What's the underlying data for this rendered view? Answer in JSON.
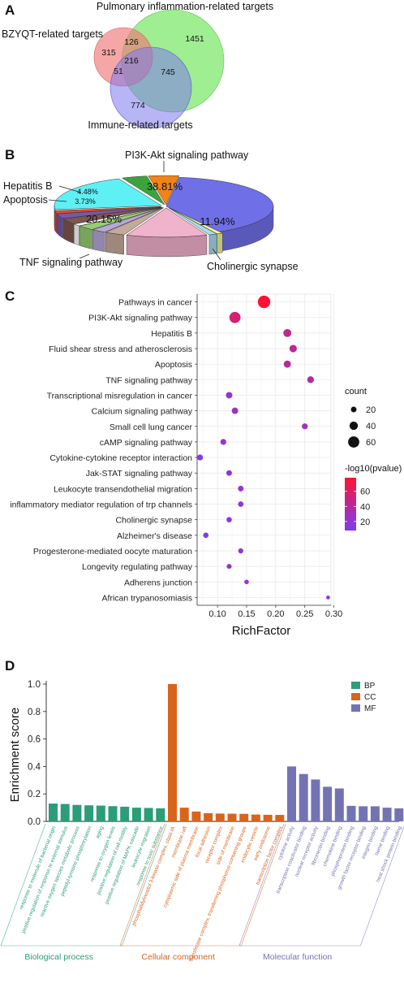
{
  "panel_labels": [
    "A",
    "B",
    "C",
    "D"
  ],
  "chart_data": [
    {
      "type": "venn",
      "sets": [
        {
          "name": "Pulmonary inflammation-related targets",
          "color": "#7fe86c"
        },
        {
          "name": "BZYQT-related targets",
          "color": "#f07878"
        },
        {
          "name": "Immune-related targets",
          "color": "#7b78ec"
        }
      ],
      "regions": [
        {
          "label": "BZYQT only",
          "value": 315
        },
        {
          "label": "BZYQT ∩ Pulmonary",
          "value": 126
        },
        {
          "label": "Pulmonary only",
          "value": 1451
        },
        {
          "label": "All three",
          "value": 216
        },
        {
          "label": "BZYQT ∩ Immune",
          "value": 51
        },
        {
          "label": "Pulmonary ∩ Immune",
          "value": 745
        },
        {
          "label": "Immune only",
          "value": 774
        }
      ]
    },
    {
      "type": "pie",
      "style": "3d-exploded",
      "slices": [
        {
          "name": "PI3K-Akt signaling pathway",
          "value": 38.81,
          "label": "38.81%",
          "color": "#6f6fe8"
        },
        {
          "name": "",
          "value": 0.9,
          "label": "",
          "color": "#f3f39a"
        },
        {
          "name": "",
          "value": 1.2,
          "label": "",
          "color": "#a8dcec"
        },
        {
          "name": "Cholinergic synapse",
          "value": 11.94,
          "label": "11.94%",
          "color": "#f1b2cc"
        },
        {
          "name": "",
          "value": 3.0,
          "label": "",
          "color": "#c5a99a"
        },
        {
          "name": "",
          "value": 2.2,
          "label": "",
          "color": "#b5a8d6"
        },
        {
          "name": "",
          "value": 2.6,
          "label": "",
          "color": "#96cd72"
        },
        {
          "name": "",
          "value": 1.2,
          "label": "",
          "color": "#ffffff"
        },
        {
          "name": "",
          "value": 3.1,
          "label": "",
          "color": "#805650"
        },
        {
          "name": "",
          "value": 2.6,
          "label": "",
          "color": "#7658ab"
        },
        {
          "name": "",
          "value": 1.7,
          "label": "",
          "color": "#e24a2e"
        },
        {
          "name": "TNF signaling pathway",
          "value": 20.15,
          "label": "20.15%",
          "color": "#5ef0f4"
        },
        {
          "name": "Apoptosis",
          "value": 3.73,
          "label": "3.73%",
          "color": "#3ca33c"
        },
        {
          "name": "Hepatitis B",
          "value": 4.48,
          "label": "4.48%",
          "color": "#f08419"
        }
      ]
    },
    {
      "type": "scatter",
      "style": "bubble",
      "xlabel": "RichFactor",
      "xticks": [
        "0.10",
        "0.15",
        "0.20",
        "0.25",
        "0.30"
      ],
      "xlim": [
        0.065,
        0.295
      ],
      "size_legend_title": "count",
      "size_legend": [
        20,
        40,
        60
      ],
      "color_legend_title": "-log10(pvalue)",
      "color_ticks": [
        "60",
        "40",
        "20"
      ],
      "color_range": [
        8,
        78
      ],
      "colors": [
        "#7b3df5",
        "#ff1133"
      ],
      "grid": true,
      "points": [
        {
          "term": "Pathways in cancer",
          "x": 0.18,
          "count": 69,
          "p": 78
        },
        {
          "term": "PI3K-Akt signaling pathway",
          "x": 0.13,
          "count": 60,
          "p": 55
        },
        {
          "term": "Hepatitis B",
          "x": 0.22,
          "count": 37,
          "p": 45
        },
        {
          "term": "Fluid shear stress and atherosclerosis",
          "x": 0.23,
          "count": 33,
          "p": 42
        },
        {
          "term": "Apoptosis",
          "x": 0.22,
          "count": 31,
          "p": 40
        },
        {
          "term": "TNF signaling pathway",
          "x": 0.26,
          "count": 28,
          "p": 36
        },
        {
          "term": "Transcriptional misregulation in cancer",
          "x": 0.12,
          "count": 26,
          "p": 24
        },
        {
          "term": "Calcium signaling pathway",
          "x": 0.13,
          "count": 26,
          "p": 25
        },
        {
          "term": "Small cell lung cancer",
          "x": 0.25,
          "count": 22,
          "p": 28
        },
        {
          "term": "cAMP signaling pathway",
          "x": 0.11,
          "count": 22,
          "p": 18
        },
        {
          "term": "Cytokine-cytokine receptor interaction",
          "x": 0.07,
          "count": 22,
          "p": 10
        },
        {
          "term": "Jak-STAT signaling pathway",
          "x": 0.12,
          "count": 20,
          "p": 17
        },
        {
          "term": "Leukocyte transendothelial migration",
          "x": 0.14,
          "count": 20,
          "p": 20
        },
        {
          "term": "inflammatory mediator regulation of trp channels",
          "x": 0.14,
          "count": 19,
          "p": 20
        },
        {
          "term": "Cholinergic synapse",
          "x": 0.12,
          "count": 18,
          "p": 17
        },
        {
          "term": "Alzheimer's disease",
          "x": 0.08,
          "count": 18,
          "p": 11
        },
        {
          "term": "Progesterone-mediated oocyte maturation",
          "x": 0.14,
          "count": 16,
          "p": 20
        },
        {
          "term": "Longevity regulating pathway",
          "x": 0.12,
          "count": 15,
          "p": 17
        },
        {
          "term": "Adherens junction",
          "x": 0.15,
          "count": 12,
          "p": 19
        },
        {
          "term": "African trypanosomiasis",
          "x": 0.29,
          "count": 7,
          "p": 15
        }
      ]
    },
    {
      "type": "bar",
      "ylabel": "Enrichment score",
      "ylim": [
        0,
        1.0
      ],
      "yticks": [
        "0.0",
        "0.2",
        "0.4",
        "0.6",
        "0.8",
        "1.0"
      ],
      "legend": [
        {
          "name": "BP",
          "color": "#2b9d78"
        },
        {
          "name": "CC",
          "color": "#d9641c"
        },
        {
          "name": "MF",
          "color": "#7373b4"
        }
      ],
      "groups": [
        {
          "name": "Biological process",
          "color": "#2b9d78",
          "items": [
            {
              "label": "response to molecule of bacterial origin",
              "value": 0.13
            },
            {
              "label": "positive regulation of response to external stimulus",
              "value": 0.127
            },
            {
              "label": "reactive oxygen species metabolic process",
              "value": 0.12
            },
            {
              "label": "peptidyl-tyrosine phosphorylation",
              "value": 0.117
            },
            {
              "label": "aging",
              "value": 0.115
            },
            {
              "label": "response to oxygen levels",
              "value": 0.111
            },
            {
              "label": "positive regulation of cell motility",
              "value": 0.107
            },
            {
              "label": "positive regulation of MAPK cascade",
              "value": 0.1
            },
            {
              "label": "leukocyte migration",
              "value": 0.098
            },
            {
              "label": "response to toxic substance",
              "value": 0.095
            }
          ]
        },
        {
          "name": "Cellular component",
          "color": "#d9641c",
          "items": [
            {
              "label": "phosphatidylinositol 3-kinase complex, class IA",
              "value": 1.0
            },
            {
              "label": "membrane raft",
              "value": 0.1
            },
            {
              "label": "cytoplasmic side of plasma membrane",
              "value": 0.072
            },
            {
              "label": "focal adhesion",
              "value": 0.06
            },
            {
              "label": "receptor complex",
              "value": 0.057
            },
            {
              "label": "side of membrane",
              "value": 0.056
            },
            {
              "label": "transferase complex, transferring phosphorus-containing groups",
              "value": 0.055
            },
            {
              "label": "endocytic vesicle",
              "value": 0.05
            },
            {
              "label": "early endosome",
              "value": 0.048
            },
            {
              "label": "transcription factor complex",
              "value": 0.047
            }
          ]
        },
        {
          "name": "Molecular function",
          "color": "#7373b4",
          "items": [
            {
              "label": "cytokine activity",
              "value": 0.4
            },
            {
              "label": "transcription coactivator binding",
              "value": 0.345
            },
            {
              "label": "nuclear receptor activity",
              "value": 0.305
            },
            {
              "label": "fibronectin binding",
              "value": 0.252
            },
            {
              "label": "chemokine binding",
              "value": 0.24
            },
            {
              "label": "phosphoprotein binding",
              "value": 0.113
            },
            {
              "label": "growth factor receptor binding",
              "value": 0.11
            },
            {
              "label": "integrin binding",
              "value": 0.11
            },
            {
              "label": "heme binding",
              "value": 0.1
            },
            {
              "label": "heat shock protein binding",
              "value": 0.095
            }
          ]
        }
      ]
    }
  ]
}
